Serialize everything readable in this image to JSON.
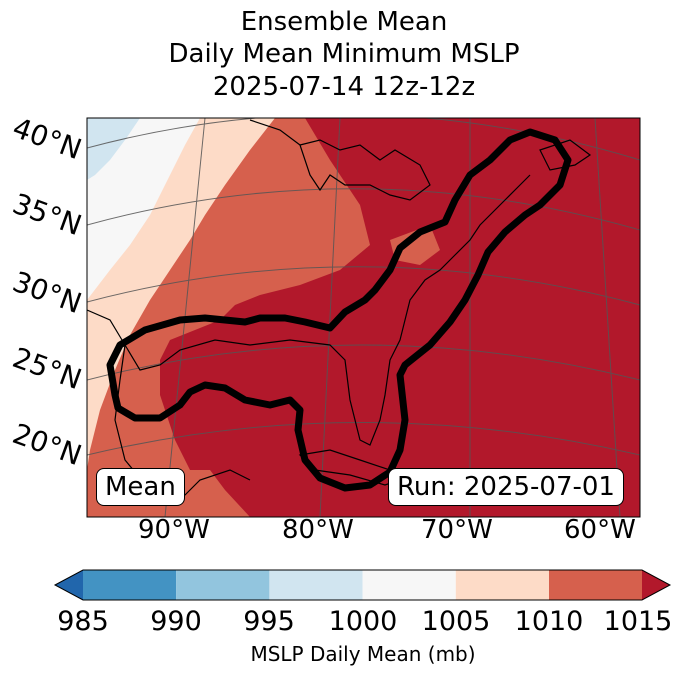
{
  "title": {
    "line1": "Ensemble Mean",
    "line2": "Daily Mean Minimum MSLP",
    "line3": "2025-07-14 12z-12z"
  },
  "lat_labels": [
    "40°N",
    "35°N",
    "30°N",
    "25°N",
    "20°N"
  ],
  "lon_labels": [
    "90°W",
    "80°W",
    "70°W",
    "60°W"
  ],
  "mean_box": "Mean",
  "run_box": "Run: 2025-07-01",
  "colorbar": {
    "label": "MSLP Daily Mean (mb)",
    "ticks": [
      "985",
      "990",
      "995",
      "1000",
      "1005",
      "1010",
      "1015"
    ],
    "colors": [
      "#2166ac",
      "#4393c3",
      "#92c5de",
      "#d1e5f0",
      "#f7f7f7",
      "#fddbc7",
      "#d6604d",
      "#b2182b"
    ]
  }
}
